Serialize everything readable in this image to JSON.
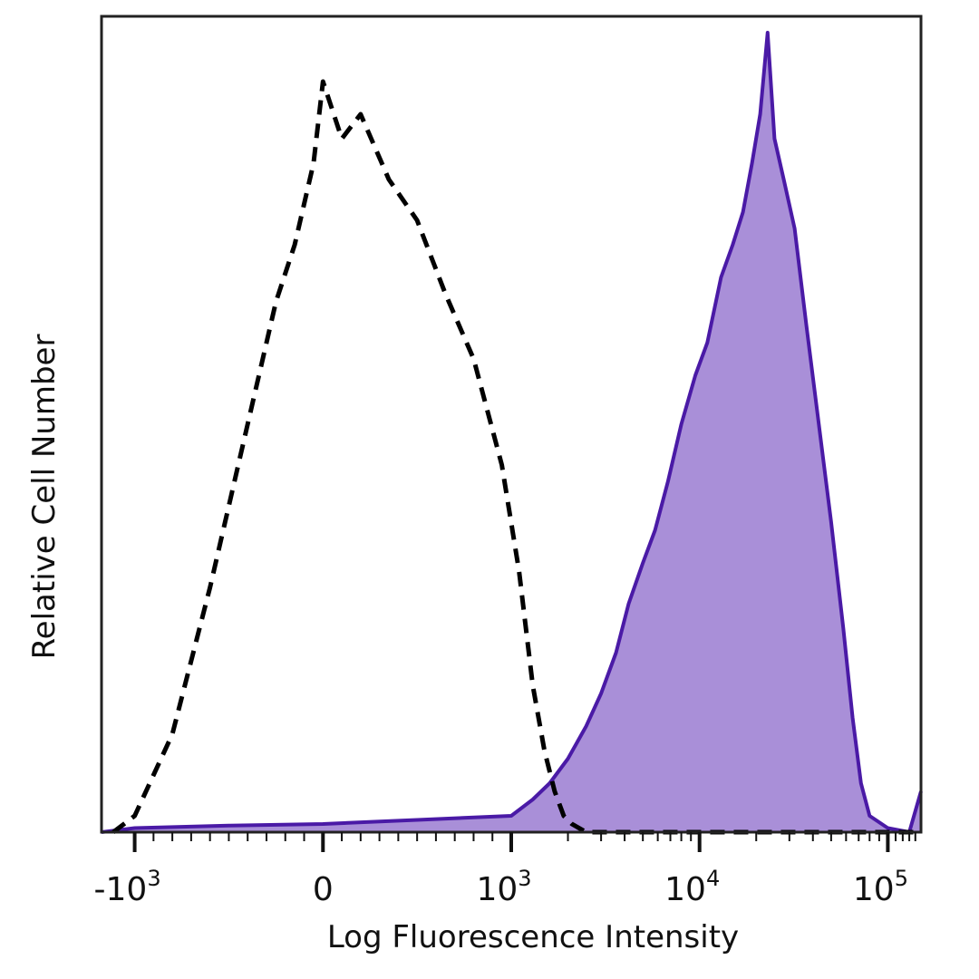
{
  "chart_data": {
    "type": "area",
    "title": "",
    "xlabel": "Log Fluorescence Intensity",
    "ylabel": "Relative Cell Number",
    "xscale": "biexponential",
    "xlim": [
      -1500,
      150000
    ],
    "ylim": [
      0,
      100
    ],
    "grid": false,
    "legend": "none",
    "x_ticks": [
      {
        "value": -1000,
        "prefix": "-10",
        "exp": "3"
      },
      {
        "value": 0,
        "prefix": "0",
        "exp": ""
      },
      {
        "value": 1000,
        "prefix": "10",
        "exp": "3"
      },
      {
        "value": 10000,
        "prefix": "10",
        "exp": "4"
      },
      {
        "value": 100000,
        "prefix": "10",
        "exp": "5"
      }
    ],
    "series": [
      {
        "style": "dashed",
        "color": "#000000",
        "fill": "none",
        "x": [
          -1300,
          -1000,
          -800,
          -600,
          -400,
          -250,
          -150,
          -50,
          0,
          100,
          200,
          350,
          500,
          650,
          800,
          950,
          1100,
          1300,
          1500,
          1700,
          1900,
          2100,
          2500,
          4000,
          10000,
          50000,
          150000
        ],
        "y": [
          0,
          2,
          12,
          30,
          50,
          65,
          72,
          82,
          92,
          85,
          88,
          80,
          75,
          66,
          58,
          45,
          32,
          18,
          10,
          5,
          2,
          1,
          0,
          0,
          0,
          0,
          0
        ]
      },
      {
        "style": "solid",
        "color": "#4a1aa6",
        "fill": "#a98fd8",
        "x": [
          -1500,
          -1000,
          -500,
          0,
          500,
          1000,
          1300,
          1600,
          2000,
          2500,
          3000,
          3600,
          4200,
          5000,
          5800,
          6800,
          8000,
          9500,
          11000,
          13000,
          15000,
          17000,
          19000,
          21000,
          23000,
          25000,
          28000,
          32000,
          37000,
          43000,
          50000,
          58000,
          65000,
          72000,
          80000,
          100000,
          130000,
          150000
        ],
        "y": [
          0,
          0.5,
          0.8,
          1,
          1.5,
          2,
          4,
          6,
          9,
          13,
          17,
          22,
          28,
          33,
          37,
          43,
          50,
          56,
          60,
          68,
          72,
          76,
          82,
          88,
          98,
          85,
          80,
          74,
          62,
          50,
          38,
          25,
          14,
          6,
          2,
          0.5,
          0,
          5
        ]
      }
    ]
  }
}
